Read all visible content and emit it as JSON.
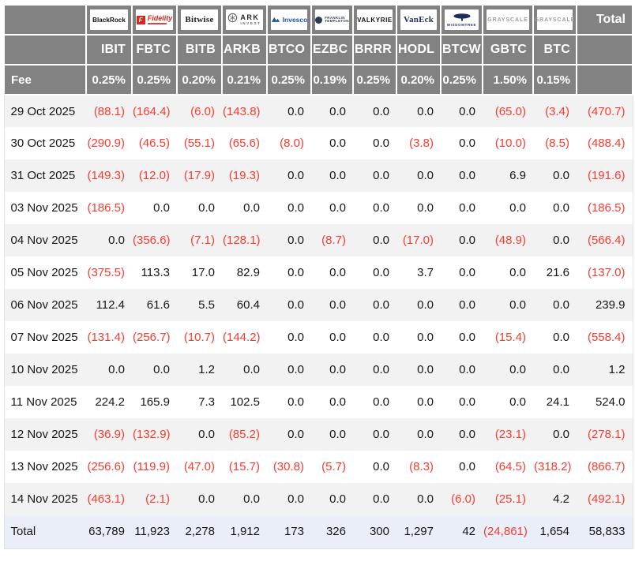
{
  "chart_data": {
    "type": "table",
    "description": "Bitcoin ETF daily flow table; negative values shown in parentheses and red",
    "total_column_label": "Total",
    "fee_row_label": "Fee",
    "providers": [
      {
        "name": "BlackRock",
        "logo": "blackrock",
        "lines": [
          "BlackRock"
        ],
        "ticker": "IBIT",
        "fee": "0.25%"
      },
      {
        "name": "Fidelity",
        "logo": "fidelity",
        "lines": [
          "F",
          "Fidelity"
        ],
        "ticker": "FBTC",
        "fee": "0.25%"
      },
      {
        "name": "Bitwise",
        "logo": "bitwise",
        "lines": [
          "Bitwise"
        ],
        "ticker": "BITB",
        "fee": "0.20%"
      },
      {
        "name": "ARK Invest",
        "logo": "ark",
        "lines": [
          "ARK",
          "INVEST"
        ],
        "ticker": "ARKB",
        "fee": "0.21%"
      },
      {
        "name": "Invesco",
        "logo": "invesco",
        "lines": [
          "Invesco"
        ],
        "ticker": "BTCO",
        "fee": "0.25%"
      },
      {
        "name": "Franklin Templeton",
        "logo": "franklin",
        "lines": [
          "FRANKLIN",
          "TEMPLETON"
        ],
        "ticker": "EZBC",
        "fee": "0.19%"
      },
      {
        "name": "Valkyrie",
        "logo": "valkyrie",
        "lines": [
          "VALKYRIE"
        ],
        "ticker": "BRRR",
        "fee": "0.25%"
      },
      {
        "name": "VanEck",
        "logo": "vaneck",
        "lines": [
          "VanEck"
        ],
        "ticker": "HODL",
        "fee": "0.20%"
      },
      {
        "name": "WisdomTree",
        "logo": "wisdomtree",
        "lines": [
          "WISDOMTREE"
        ],
        "ticker": "BTCW",
        "fee": "0.25%"
      },
      {
        "name": "Grayscale",
        "logo": "grayscale",
        "lines": [
          "GRAYSCALE"
        ],
        "ticker": "GBTC",
        "fee": "1.50%"
      },
      {
        "name": "Grayscale",
        "logo": "grayscale",
        "lines": [
          "GRAYSCALE"
        ],
        "ticker": "BTC",
        "fee": "0.15%"
      }
    ],
    "rows": [
      {
        "date": "29 Oct 2025",
        "values": [
          "(88.1)",
          "(164.4)",
          "(6.0)",
          "(143.8)",
          "0.0",
          "0.0",
          "0.0",
          "0.0",
          "0.0",
          "(65.0)",
          "(3.4)"
        ],
        "total": "(470.7)"
      },
      {
        "date": "30 Oct 2025",
        "values": [
          "(290.9)",
          "(46.5)",
          "(55.1)",
          "(65.6)",
          "(8.0)",
          "0.0",
          "0.0",
          "(3.8)",
          "0.0",
          "(10.0)",
          "(8.5)"
        ],
        "total": "(488.4)"
      },
      {
        "date": "31 Oct 2025",
        "values": [
          "(149.3)",
          "(12.0)",
          "(17.9)",
          "(19.3)",
          "0.0",
          "0.0",
          "0.0",
          "0.0",
          "0.0",
          "6.9",
          "0.0"
        ],
        "total": "(191.6)"
      },
      {
        "date": "03 Nov 2025",
        "values": [
          "(186.5)",
          "0.0",
          "0.0",
          "0.0",
          "0.0",
          "0.0",
          "0.0",
          "0.0",
          "0.0",
          "0.0",
          "0.0"
        ],
        "total": "(186.5)"
      },
      {
        "date": "04 Nov 2025",
        "values": [
          "0.0",
          "(356.6)",
          "(7.1)",
          "(128.1)",
          "0.0",
          "(8.7)",
          "0.0",
          "(17.0)",
          "0.0",
          "(48.9)",
          "0.0"
        ],
        "total": "(566.4)"
      },
      {
        "date": "05 Nov 2025",
        "values": [
          "(375.5)",
          "113.3",
          "17.0",
          "82.9",
          "0.0",
          "0.0",
          "0.0",
          "3.7",
          "0.0",
          "0.0",
          "21.6"
        ],
        "total": "(137.0)"
      },
      {
        "date": "06 Nov 2025",
        "values": [
          "112.4",
          "61.6",
          "5.5",
          "60.4",
          "0.0",
          "0.0",
          "0.0",
          "0.0",
          "0.0",
          "0.0",
          "0.0"
        ],
        "total": "239.9"
      },
      {
        "date": "07 Nov 2025",
        "values": [
          "(131.4)",
          "(256.7)",
          "(10.7)",
          "(144.2)",
          "0.0",
          "0.0",
          "0.0",
          "0.0",
          "0.0",
          "(15.4)",
          "0.0"
        ],
        "total": "(558.4)"
      },
      {
        "date": "10 Nov 2025",
        "values": [
          "0.0",
          "0.0",
          "1.2",
          "0.0",
          "0.0",
          "0.0",
          "0.0",
          "0.0",
          "0.0",
          "0.0",
          "0.0"
        ],
        "total": "1.2"
      },
      {
        "date": "11 Nov 2025",
        "values": [
          "224.2",
          "165.9",
          "7.3",
          "102.5",
          "0.0",
          "0.0",
          "0.0",
          "0.0",
          "0.0",
          "0.0",
          "24.1"
        ],
        "total": "524.0"
      },
      {
        "date": "12 Nov 2025",
        "values": [
          "(36.9)",
          "(132.9)",
          "0.0",
          "(85.2)",
          "0.0",
          "0.0",
          "0.0",
          "0.0",
          "0.0",
          "(23.1)",
          "0.0"
        ],
        "total": "(278.1)"
      },
      {
        "date": "13 Nov 2025",
        "values": [
          "(256.6)",
          "(119.9)",
          "(47.0)",
          "(15.7)",
          "(30.8)",
          "(5.7)",
          "0.0",
          "(8.3)",
          "0.0",
          "(64.5)",
          "(318.2)"
        ],
        "total": "(866.7)"
      },
      {
        "date": "14 Nov 2025",
        "values": [
          "(463.1)",
          "(2.1)",
          "0.0",
          "0.0",
          "0.0",
          "0.0",
          "0.0",
          "0.0",
          "(6.0)",
          "(25.1)",
          "4.2"
        ],
        "total": "(492.1)"
      }
    ],
    "total_row": {
      "label": "Total",
      "values": [
        "63,789",
        "11,923",
        "2,278",
        "1,912",
        "173",
        "326",
        "300",
        "1,297",
        "42",
        "(24,861)",
        "1,654"
      ],
      "total": "58,833"
    },
    "colors": {
      "header_bg": "#828282",
      "header_text": "#ffffff",
      "negative_value": "#fa3b30",
      "stripe_row_bg": "#f2f2f2",
      "total_row_bg": "#e9eef9",
      "fidelity_red": "#d6281e",
      "invesco_blue": "#1f55a5",
      "vaneck_navy": "#1c2d5e",
      "grayscale_gray": "#9c9c9c"
    }
  }
}
